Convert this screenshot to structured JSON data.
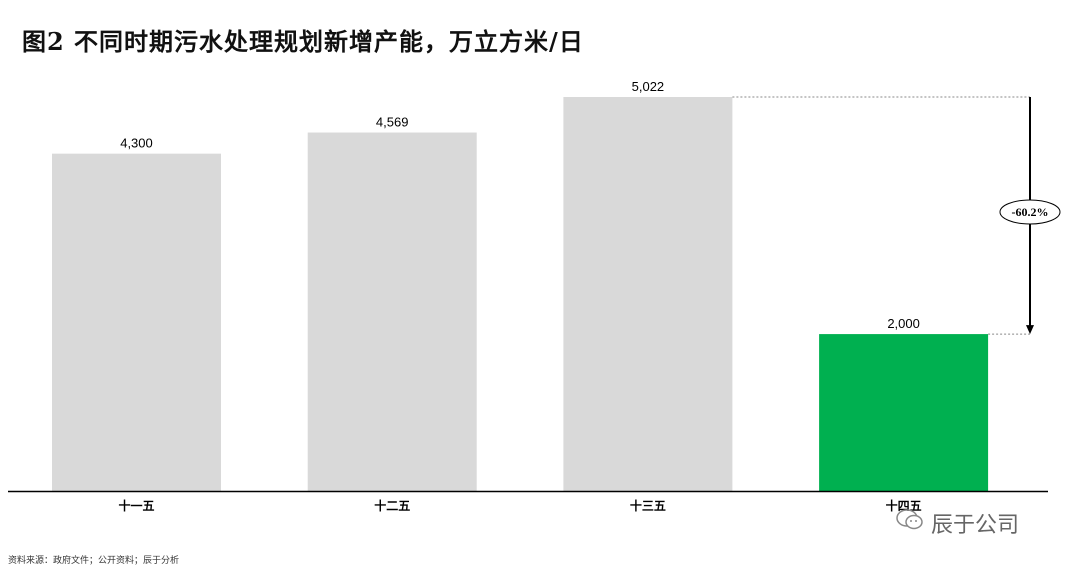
{
  "chart_data": {
    "type": "bar",
    "title": "图2 不同时期污水处理规划新增产能，万立方米/日",
    "categories": [
      "十一五",
      "十二五",
      "十三五",
      "十四五"
    ],
    "values": [
      4300,
      4569,
      5022,
      2000
    ],
    "data_labels": [
      "4,300",
      "4,569",
      "5,022",
      "2,000"
    ],
    "bar_colors": [
      "#d9d9d9",
      "#d9d9d9",
      "#d9d9d9",
      "#00b050"
    ],
    "ylim": [
      0,
      5022
    ],
    "grid": false,
    "legend": "none",
    "annotation": {
      "text": "-60.2%",
      "from": "十三五",
      "to": "十四五"
    }
  },
  "source": "资料来源：政府文件；公开资料；辰于分析",
  "watermark": "辰于公司"
}
